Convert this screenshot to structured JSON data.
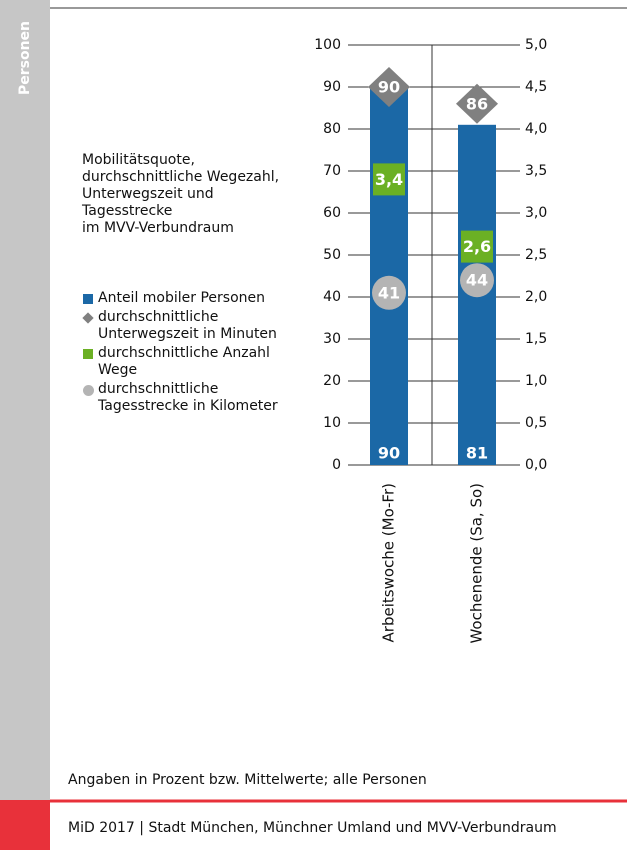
{
  "sidebar_label": "Personen",
  "chart_data": {
    "type": "bar",
    "title": "Mobilitätsquote, durchschnittliche Wegezahl, Unterwegszeit und Tagesstrecke",
    "subtitle": "im MVV-Verbundraum",
    "categories": [
      "Arbeitswoche (Mo-Fr)",
      "Wochenende (Sa, So)"
    ],
    "series": [
      {
        "name": "Anteil mobiler Personen",
        "marker": "bar",
        "color": "#1b68a6",
        "values": [
          90,
          81
        ]
      },
      {
        "name": "durchschnittliche Unterwegszeit in Minuten",
        "marker": "diamond",
        "color": "#808080",
        "values": [
          90,
          86
        ]
      },
      {
        "name": "durchschnittliche Anzahl Wege",
        "marker": "square",
        "color": "#6bb024",
        "axis": "y2",
        "values": [
          3.4,
          2.6
        ],
        "value_labels": [
          "3,4",
          "2,6"
        ]
      },
      {
        "name": "durchschnittliche Tagesstrecke in Kilometer",
        "marker": "circle",
        "color": "#b4b4b4",
        "values": [
          41,
          44
        ]
      }
    ],
    "ylim": [
      0,
      100
    ],
    "yticks": [
      0,
      10,
      20,
      30,
      40,
      50,
      60,
      70,
      80,
      90,
      100
    ],
    "y2lim": [
      0,
      5
    ],
    "y2ticks": [
      {
        "value": 0,
        "label": "0,0"
      },
      {
        "value": 0.5,
        "label": "0,5"
      },
      {
        "value": 1,
        "label": "1,0"
      },
      {
        "value": 1.5,
        "label": "1,5"
      },
      {
        "value": 2,
        "label": "2,0"
      },
      {
        "value": 2.5,
        "label": "2,5"
      },
      {
        "value": 3,
        "label": "3,0"
      },
      {
        "value": 3.5,
        "label": "3,5"
      },
      {
        "value": 4,
        "label": "4,0"
      },
      {
        "value": 4.5,
        "label": "4,5"
      },
      {
        "value": 5,
        "label": "5,0"
      }
    ],
    "grid": true,
    "note": "Angaben in Prozent bzw. Mittelwerte; alle Personen"
  },
  "footer": "MiD 2017  | Stadt München, Münchner Umland und MVV-Verbundraum"
}
